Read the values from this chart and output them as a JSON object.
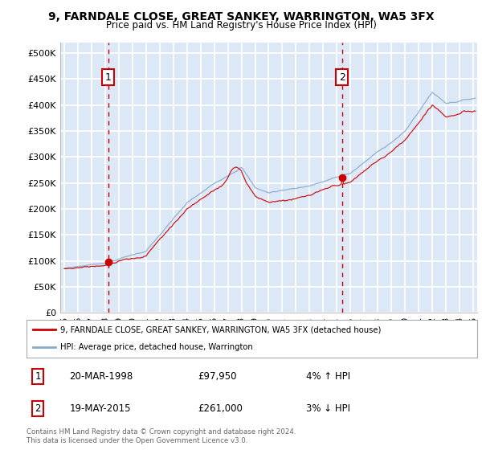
{
  "title_line1": "9, FARNDALE CLOSE, GREAT SANKEY, WARRINGTON, WA5 3FX",
  "title_line2": "Price paid vs. HM Land Registry's House Price Index (HPI)",
  "ytick_labels": [
    "£0",
    "£50K",
    "£100K",
    "£150K",
    "£200K",
    "£250K",
    "£300K",
    "£350K",
    "£400K",
    "£450K",
    "£500K"
  ],
  "yticks": [
    0,
    50000,
    100000,
    150000,
    200000,
    250000,
    300000,
    350000,
    400000,
    450000,
    500000
  ],
  "ylim": [
    0,
    520000
  ],
  "xlim_start": 1994.7,
  "xlim_end": 2025.3,
  "plot_bg_color": "#dce8f5",
  "grid_color": "#ffffff",
  "sale1_year": 1998.22,
  "sale1_price": 97950,
  "sale2_year": 2015.38,
  "sale2_price": 261000,
  "sale1_date": "20-MAR-1998",
  "sale1_pricef": "£97,950",
  "sale1_hpi": "4% ↑ HPI",
  "sale2_date": "19-MAY-2015",
  "sale2_pricef": "£261,000",
  "sale2_hpi": "3% ↓ HPI",
  "legend_line1": "9, FARNDALE CLOSE, GREAT SANKEY, WARRINGTON, WA5 3FX (detached house)",
  "legend_line2": "HPI: Average price, detached house, Warrington",
  "footer": "Contains HM Land Registry data © Crown copyright and database right 2024.\nThis data is licensed under the Open Government Licence v3.0.",
  "line_color_red": "#cc0000",
  "line_color_blue": "#88aacc",
  "vline_color": "#cc0000",
  "box_edge_color": "#cc0000",
  "xtick_years": [
    1995,
    1996,
    1997,
    1998,
    1999,
    2000,
    2001,
    2002,
    2003,
    2004,
    2005,
    2006,
    2007,
    2008,
    2009,
    2010,
    2011,
    2012,
    2013,
    2014,
    2015,
    2016,
    2017,
    2018,
    2019,
    2020,
    2021,
    2022,
    2023,
    2024,
    2025
  ]
}
